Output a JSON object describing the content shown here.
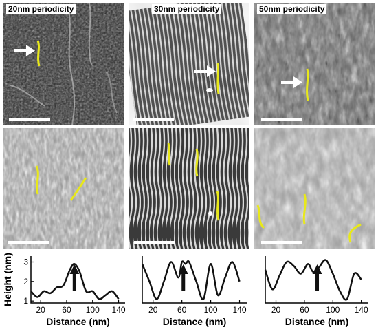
{
  "figure": {
    "panel_titles": [
      "20nm periodicity",
      "30nm periodicity",
      "50nm periodicity"
    ]
  },
  "colors": {
    "trace_highlight": "#e8e81a",
    "arrow": "#ffffff",
    "profile_line": "#111111"
  },
  "chart_data": [
    {
      "type": "line",
      "xlabel": "Distance (nm)",
      "ylabel": "Height (nm)",
      "xticks": [
        20,
        60,
        100,
        140
      ],
      "yticks": [
        1,
        2,
        3
      ],
      "xlim": [
        5,
        150
      ],
      "ylim": [
        0.9,
        3.3
      ],
      "grid": false,
      "arrow_x": 72,
      "x": [
        5,
        15,
        25,
        35,
        45,
        55,
        65,
        72,
        80,
        90,
        100,
        110,
        120,
        130,
        140
      ],
      "y": [
        1.5,
        1.2,
        1.5,
        1.4,
        1.7,
        1.8,
        2.6,
        2.9,
        2.5,
        1.5,
        1.5,
        1.1,
        1.3,
        1.5,
        1.1
      ]
    },
    {
      "type": "line",
      "xlabel": "Distance (nm)",
      "ylabel": "",
      "xticks": [
        20,
        60,
        100,
        140
      ],
      "yticks": [],
      "xlim": [
        5,
        150
      ],
      "ylim": [
        0.9,
        3.3
      ],
      "grid": false,
      "arrow_x": 62,
      "x": [
        5,
        15,
        25,
        35,
        45,
        55,
        60,
        65,
        70,
        80,
        90,
        100,
        110,
        120,
        130,
        140
      ],
      "y": [
        2.9,
        2.0,
        1.1,
        2.0,
        3.0,
        2.2,
        3.0,
        2.9,
        3.0,
        2.0,
        1.1,
        2.9,
        1.3,
        2.2,
        3.0,
        2.0
      ],
      "sampling": "interpolated"
    },
    {
      "type": "line",
      "xlabel": "Distance (nm)",
      "ylabel": "",
      "xticks": [
        20,
        60,
        100,
        140
      ],
      "yticks": [],
      "xlim": [
        5,
        150
      ],
      "ylim": [
        0.9,
        3.3
      ],
      "grid": false,
      "arrow_x": 78,
      "x": [
        5,
        15,
        25,
        35,
        45,
        55,
        65,
        72,
        80,
        90,
        100,
        110,
        120,
        130,
        140
      ],
      "y": [
        2.6,
        1.6,
        2.3,
        3.0,
        2.8,
        2.4,
        2.9,
        2.5,
        2.7,
        3.1,
        2.4,
        1.5,
        1.1,
        2.4,
        2.1
      ]
    }
  ]
}
